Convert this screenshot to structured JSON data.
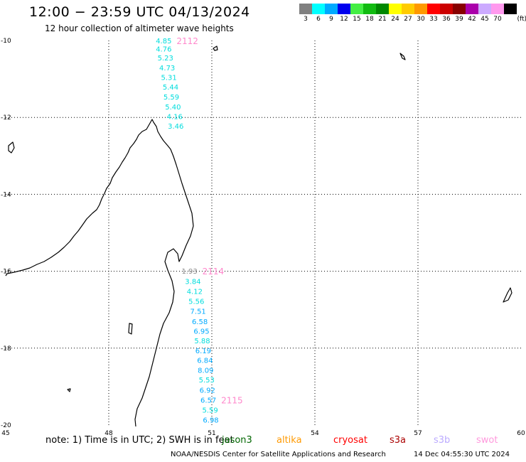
{
  "title": "12:00 − 23:59 UTC 04/13/2024",
  "subtitle": "12 hour collection of altimeter wave heights",
  "legend": {
    "unit": "(ft)",
    "bins": [
      {
        "label": "3",
        "color": "#808080"
      },
      {
        "label": "6",
        "color": "#00ffff"
      },
      {
        "label": "9",
        "color": "#00aaff"
      },
      {
        "label": "12",
        "color": "#0000ee"
      },
      {
        "label": "15",
        "color": "#44ee44"
      },
      {
        "label": "18",
        "color": "#11bb11"
      },
      {
        "label": "21",
        "color": "#008800"
      },
      {
        "label": "24",
        "color": "#ffff00"
      },
      {
        "label": "27",
        "color": "#ffcc00"
      },
      {
        "label": "30",
        "color": "#ff9900"
      },
      {
        "label": "33",
        "color": "#ff0000"
      },
      {
        "label": "36",
        "color": "#cc0000"
      },
      {
        "label": "39",
        "color": "#880000"
      },
      {
        "label": "42",
        "color": "#aa00aa"
      },
      {
        "label": "45",
        "color": "#ccaaff"
      },
      {
        "label": "70",
        "color": "#ff99ee"
      },
      {
        "label": "",
        "color": "#000000"
      }
    ]
  },
  "axes": {
    "lon_ticks": [
      {
        "label": "45",
        "value": 45
      },
      {
        "label": "48",
        "value": 48
      },
      {
        "label": "51",
        "value": 51
      },
      {
        "label": "54",
        "value": 54
      },
      {
        "label": "57",
        "value": 57
      },
      {
        "label": "60",
        "value": 60
      }
    ],
    "lat_ticks": [
      {
        "label": "-10",
        "value": -10
      },
      {
        "label": "-12",
        "value": -12
      },
      {
        "label": "-14",
        "value": -14
      },
      {
        "label": "-16",
        "value": -16
      },
      {
        "label": "-18",
        "value": -18
      },
      {
        "label": "-20",
        "value": -20
      }
    ],
    "lon_range": [
      45,
      60
    ],
    "lat_range": [
      -20,
      -10
    ]
  },
  "tracks": [
    {
      "pass_id": "2112",
      "pass_color": "#ff88cc",
      "points": [
        {
          "lon": 49.6,
          "lat": -10.02,
          "value": "4.85",
          "color": "#00dddd"
        },
        {
          "lon": 49.6,
          "lat": -10.23,
          "value": "4.76",
          "color": "#00dddd"
        },
        {
          "lon": 49.65,
          "lat": -10.46,
          "value": "5.23",
          "color": "#00dddd"
        },
        {
          "lon": 49.7,
          "lat": -10.72,
          "value": "4.73",
          "color": "#00dddd"
        },
        {
          "lon": 49.75,
          "lat": -10.97,
          "value": "5.31",
          "color": "#00dddd"
        },
        {
          "lon": 49.8,
          "lat": -11.22,
          "value": "5.44",
          "color": "#00dddd"
        },
        {
          "lon": 49.82,
          "lat": -11.48,
          "value": "5.59",
          "color": "#00dddd"
        },
        {
          "lon": 49.87,
          "lat": -11.74,
          "value": "5.40",
          "color": "#00dddd"
        },
        {
          "lon": 49.92,
          "lat": -11.99,
          "value": "4.16",
          "color": "#00dddd"
        },
        {
          "lon": 49.95,
          "lat": -12.24,
          "value": "3.46",
          "color": "#00dddd"
        }
      ]
    },
    {
      "pass_id": "2114",
      "pass_color": "#ff88cc",
      "points": [
        {
          "lon": 50.35,
          "lat": -16.01,
          "value": "1.93",
          "color": "#888888"
        },
        {
          "lon": 50.45,
          "lat": -16.28,
          "value": "3.84",
          "color": "#00dddd"
        },
        {
          "lon": 50.5,
          "lat": -16.53,
          "value": "4.12",
          "color": "#00dddd"
        },
        {
          "lon": 50.55,
          "lat": -16.79,
          "value": "5.56",
          "color": "#00dddd"
        },
        {
          "lon": 50.6,
          "lat": -17.05,
          "value": "7.51",
          "color": "#00aaff"
        },
        {
          "lon": 50.65,
          "lat": -17.32,
          "value": "6.58",
          "color": "#00aaff"
        },
        {
          "lon": 50.7,
          "lat": -17.57,
          "value": "6.95",
          "color": "#00aaff"
        },
        {
          "lon": 50.72,
          "lat": -17.82,
          "value": "5.88",
          "color": "#00dddd"
        },
        {
          "lon": 50.75,
          "lat": -18.08,
          "value": "6.19",
          "color": "#00aaff"
        },
        {
          "lon": 50.8,
          "lat": -18.33,
          "value": "6.84",
          "color": "#00aaff"
        },
        {
          "lon": 50.82,
          "lat": -18.59,
          "value": "8.09",
          "color": "#00aaff"
        },
        {
          "lon": 50.85,
          "lat": -18.84,
          "value": "5.53",
          "color": "#00dddd"
        },
        {
          "lon": 50.87,
          "lat": -19.1,
          "value": "6.92",
          "color": "#00aaff"
        }
      ]
    },
    {
      "pass_id": "2115",
      "pass_color": "#ff88cc",
      "points": [
        {
          "lon": 50.9,
          "lat": -19.36,
          "value": "6.57",
          "color": "#00aaff"
        },
        {
          "lon": 50.95,
          "lat": -19.62,
          "value": "5.59",
          "color": "#00dddd"
        },
        {
          "lon": 50.97,
          "lat": -19.88,
          "value": "6.98",
          "color": "#00aaff"
        }
      ]
    }
  ],
  "note": "note: 1) Time is in UTC; 2) SWH is in feet",
  "missions": [
    {
      "name": "jason3",
      "color": "#006600"
    },
    {
      "name": "altika",
      "color": "#ff9900"
    },
    {
      "name": "cryosat",
      "color": "#ff0000"
    },
    {
      "name": "s3a",
      "color": "#aa0000"
    },
    {
      "name": "s3b",
      "color": "#bbaaff"
    },
    {
      "name": "swot",
      "color": "#ff99dd"
    }
  ],
  "credit": "NOAA/NESDIS Center for Satellite Applications and Research",
  "generated": "14 Dec 04:55:30 UTC 2024"
}
